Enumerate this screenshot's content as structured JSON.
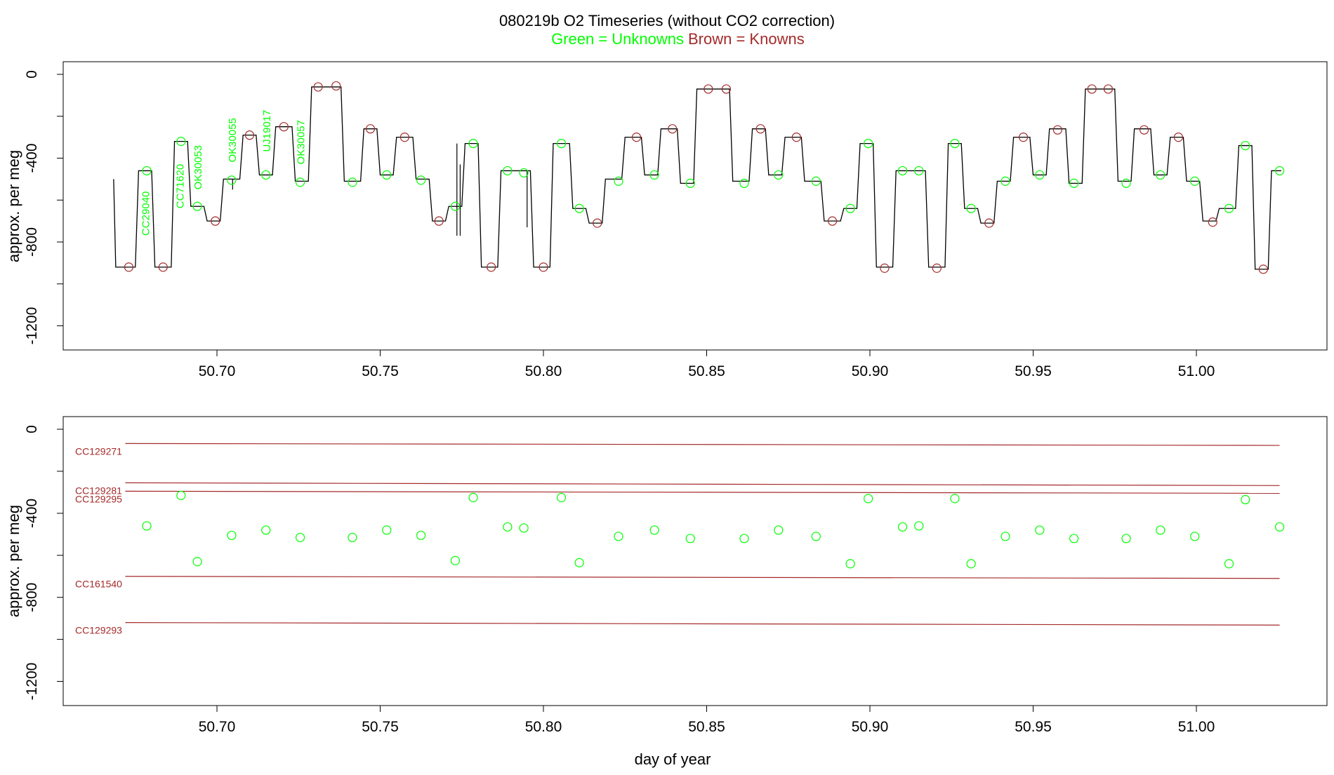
{
  "header": {
    "title": "080219b   O2 Timeseries (without CO2 correction)",
    "legend_green": "Green = Unknowns",
    "legend_brown": "Brown = Knowns"
  },
  "colors": {
    "unknowns": "#00ff00",
    "knowns": "#a52a2a",
    "trace": "#000000"
  },
  "chart_data": [
    {
      "type": "line",
      "panel": "top",
      "xlabel": "",
      "ylabel": "approx. per meg",
      "xlim": [
        50.655,
        51.04
      ],
      "ylim": [
        -1250,
        55
      ],
      "xticks": [
        "50.70",
        "50.75",
        "50.80",
        "50.85",
        "50.90",
        "50.95",
        "51.00"
      ],
      "yticks": [
        "0",
        "-400",
        "-800",
        "-1200"
      ],
      "segments": [
        {
          "x0": 50.669,
          "x1": 50.675,
          "y": -920
        },
        {
          "x0": 50.676,
          "x1": 50.68,
          "y": -460
        },
        {
          "x0": 50.681,
          "x1": 50.686,
          "y": -920
        },
        {
          "x0": 50.687,
          "x1": 50.691,
          "y": -320
        },
        {
          "x0": 50.692,
          "x1": 50.696,
          "y": -630
        },
        {
          "x0": 50.697,
          "x1": 50.701,
          "y": -700
        },
        {
          "x0": 50.702,
          "x1": 50.707,
          "y": -500
        },
        {
          "x0": 50.708,
          "x1": 50.712,
          "y": -290
        },
        {
          "x0": 50.713,
          "x1": 50.717,
          "y": -480
        },
        {
          "x0": 50.718,
          "x1": 50.723,
          "y": -250
        },
        {
          "x0": 50.724,
          "x1": 50.728,
          "y": -510
        },
        {
          "x0": 50.729,
          "x1": 50.738,
          "y": -60
        },
        {
          "x0": 50.739,
          "x1": 50.744,
          "y": -510
        },
        {
          "x0": 50.745,
          "x1": 50.749,
          "y": -260
        },
        {
          "x0": 50.75,
          "x1": 50.754,
          "y": -480
        },
        {
          "x0": 50.755,
          "x1": 50.76,
          "y": -300
        },
        {
          "x0": 50.761,
          "x1": 50.765,
          "y": -500
        },
        {
          "x0": 50.766,
          "x1": 50.77,
          "y": -700
        },
        {
          "x0": 50.771,
          "x1": 50.775,
          "y": -630
        },
        {
          "x0": 50.776,
          "x1": 50.78,
          "y": -330
        },
        {
          "x0": 50.781,
          "x1": 50.786,
          "y": -920
        },
        {
          "x0": 50.787,
          "x1": 50.796,
          "y": -460
        },
        {
          "x0": 50.797,
          "x1": 50.802,
          "y": -920
        },
        {
          "x0": 50.803,
          "x1": 50.808,
          "y": -330
        },
        {
          "x0": 50.809,
          "x1": 50.813,
          "y": -640
        },
        {
          "x0": 50.814,
          "x1": 50.818,
          "y": -710
        },
        {
          "x0": 50.819,
          "x1": 50.824,
          "y": -500
        },
        {
          "x0": 50.825,
          "x1": 50.83,
          "y": -300
        },
        {
          "x0": 50.831,
          "x1": 50.835,
          "y": -480
        },
        {
          "x0": 50.836,
          "x1": 50.841,
          "y": -260
        },
        {
          "x0": 50.842,
          "x1": 50.846,
          "y": -520
        },
        {
          "x0": 50.847,
          "x1": 50.857,
          "y": -70
        },
        {
          "x0": 50.858,
          "x1": 50.863,
          "y": -510
        },
        {
          "x0": 50.864,
          "x1": 50.868,
          "y": -260
        },
        {
          "x0": 50.869,
          "x1": 50.873,
          "y": -480
        },
        {
          "x0": 50.874,
          "x1": 50.879,
          "y": -300
        },
        {
          "x0": 50.88,
          "x1": 50.885,
          "y": -510
        },
        {
          "x0": 50.886,
          "x1": 50.891,
          "y": -700
        },
        {
          "x0": 50.892,
          "x1": 50.896,
          "y": -640
        },
        {
          "x0": 50.897,
          "x1": 50.901,
          "y": -330
        },
        {
          "x0": 50.902,
          "x1": 50.907,
          "y": -920
        },
        {
          "x0": 50.908,
          "x1": 50.917,
          "y": -460
        },
        {
          "x0": 50.918,
          "x1": 50.923,
          "y": -920
        },
        {
          "x0": 50.924,
          "x1": 50.928,
          "y": -330
        },
        {
          "x0": 50.929,
          "x1": 50.933,
          "y": -640
        },
        {
          "x0": 50.934,
          "x1": 50.938,
          "y": -710
        },
        {
          "x0": 50.939,
          "x1": 50.943,
          "y": -510
        },
        {
          "x0": 50.944,
          "x1": 50.949,
          "y": -300
        },
        {
          "x0": 50.95,
          "x1": 50.954,
          "y": -480
        },
        {
          "x0": 50.955,
          "x1": 50.96,
          "y": -260
        },
        {
          "x0": 50.961,
          "x1": 50.965,
          "y": -520
        },
        {
          "x0": 50.966,
          "x1": 50.975,
          "y": -70
        },
        {
          "x0": 50.976,
          "x1": 50.98,
          "y": -510
        },
        {
          "x0": 50.981,
          "x1": 50.986,
          "y": -260
        },
        {
          "x0": 50.987,
          "x1": 50.991,
          "y": -480
        },
        {
          "x0": 50.992,
          "x1": 50.996,
          "y": -300
        },
        {
          "x0": 50.997,
          "x1": 51.001,
          "y": -510
        },
        {
          "x0": 51.002,
          "x1": 51.006,
          "y": -700
        },
        {
          "x0": 51.007,
          "x1": 51.012,
          "y": -640
        },
        {
          "x0": 51.013,
          "x1": 51.017,
          "y": -340
        },
        {
          "x0": 51.018,
          "x1": 51.022,
          "y": -930
        },
        {
          "x0": 51.023,
          "x1": 51.026,
          "y": -460
        }
      ],
      "spikes": [
        {
          "x": 50.7048,
          "y0": -500,
          "y1": -550
        },
        {
          "x": 50.7735,
          "y0": -330,
          "y1": -770
        },
        {
          "x": 50.7745,
          "y0": -430,
          "y1": -770
        },
        {
          "x": 50.795,
          "y0": -460,
          "y1": -730
        }
      ],
      "unknown_points": [
        {
          "x": 50.6785,
          "y": -460
        },
        {
          "x": 50.689,
          "y": -320
        },
        {
          "x": 50.694,
          "y": -630
        },
        {
          "x": 50.7045,
          "y": -505
        },
        {
          "x": 50.715,
          "y": -480
        },
        {
          "x": 50.7255,
          "y": -515
        },
        {
          "x": 50.7415,
          "y": -515
        },
        {
          "x": 50.752,
          "y": -480
        },
        {
          "x": 50.7625,
          "y": -505
        },
        {
          "x": 50.773,
          "y": -630
        },
        {
          "x": 50.7785,
          "y": -330
        },
        {
          "x": 50.789,
          "y": -460
        },
        {
          "x": 50.794,
          "y": -470
        },
        {
          "x": 50.8055,
          "y": -330
        },
        {
          "x": 50.811,
          "y": -640
        },
        {
          "x": 50.823,
          "y": -510
        },
        {
          "x": 50.834,
          "y": -480
        },
        {
          "x": 50.845,
          "y": -520
        },
        {
          "x": 50.8615,
          "y": -520
        },
        {
          "x": 50.872,
          "y": -480
        },
        {
          "x": 50.8835,
          "y": -510
        },
        {
          "x": 50.894,
          "y": -640
        },
        {
          "x": 50.8995,
          "y": -330
        },
        {
          "x": 50.91,
          "y": -460
        },
        {
          "x": 50.915,
          "y": -460
        },
        {
          "x": 50.926,
          "y": -330
        },
        {
          "x": 50.931,
          "y": -640
        },
        {
          "x": 50.9415,
          "y": -510
        },
        {
          "x": 50.952,
          "y": -480
        },
        {
          "x": 50.9625,
          "y": -520
        },
        {
          "x": 50.9785,
          "y": -520
        },
        {
          "x": 50.989,
          "y": -480
        },
        {
          "x": 50.9995,
          "y": -510
        },
        {
          "x": 51.01,
          "y": -640
        },
        {
          "x": 51.015,
          "y": -340
        },
        {
          "x": 51.0255,
          "y": -460
        }
      ],
      "known_points": [
        {
          "x": 50.673,
          "y": -920
        },
        {
          "x": 50.6835,
          "y": -920
        },
        {
          "x": 50.6995,
          "y": -700
        },
        {
          "x": 50.71,
          "y": -290
        },
        {
          "x": 50.7205,
          "y": -250
        },
        {
          "x": 50.731,
          "y": -60
        },
        {
          "x": 50.7365,
          "y": -55
        },
        {
          "x": 50.747,
          "y": -260
        },
        {
          "x": 50.7575,
          "y": -300
        },
        {
          "x": 50.768,
          "y": -700
        },
        {
          "x": 50.784,
          "y": -920
        },
        {
          "x": 50.8,
          "y": -920
        },
        {
          "x": 50.8165,
          "y": -710
        },
        {
          "x": 50.8285,
          "y": -300
        },
        {
          "x": 50.8395,
          "y": -260
        },
        {
          "x": 50.8505,
          "y": -70
        },
        {
          "x": 50.856,
          "y": -70
        },
        {
          "x": 50.8665,
          "y": -260
        },
        {
          "x": 50.8775,
          "y": -300
        },
        {
          "x": 50.8885,
          "y": -700
        },
        {
          "x": 50.9045,
          "y": -925
        },
        {
          "x": 50.9205,
          "y": -925
        },
        {
          "x": 50.9365,
          "y": -710
        },
        {
          "x": 50.947,
          "y": -300
        },
        {
          "x": 50.9575,
          "y": -265
        },
        {
          "x": 50.968,
          "y": -70
        },
        {
          "x": 50.973,
          "y": -70
        },
        {
          "x": 50.984,
          "y": -265
        },
        {
          "x": 50.9945,
          "y": -300
        },
        {
          "x": 51.005,
          "y": -705
        },
        {
          "x": 51.0205,
          "y": -930
        }
      ],
      "annotations": [
        {
          "text": "CC29040",
          "x": 50.678,
          "y": -770
        },
        {
          "text": "CC71620",
          "x": 50.6885,
          "y": -640
        },
        {
          "text": "OK30053",
          "x": 50.694,
          "y": -550
        },
        {
          "text": "OK30055",
          "x": 50.7045,
          "y": -420
        },
        {
          "text": "UJ19017",
          "x": 50.715,
          "y": -370
        },
        {
          "text": "OK30057",
          "x": 50.7255,
          "y": -430
        }
      ]
    },
    {
      "type": "scatter",
      "panel": "bottom",
      "xlabel": "day of year",
      "ylabel": "approx. per meg",
      "xlim": [
        50.655,
        51.04
      ],
      "ylim": [
        -1250,
        55
      ],
      "xticks": [
        "50.70",
        "50.75",
        "50.80",
        "50.85",
        "50.90",
        "50.95",
        "51.00"
      ],
      "yticks": [
        "0",
        "-400",
        "-800",
        "-1200"
      ],
      "reference_lines": [
        {
          "name": "CC129271",
          "x0": 50.673,
          "x1": 51.0255,
          "y0": -68,
          "y1": -77
        },
        {
          "name": "CC129281",
          "x0": 50.673,
          "x1": 51.0255,
          "y0": -255,
          "y1": -268
        },
        {
          "name": "CC129295",
          "x0": 50.673,
          "x1": 51.0255,
          "y0": -295,
          "y1": -305
        },
        {
          "name": "CC161540",
          "x0": 50.673,
          "x1": 51.0255,
          "y0": -700,
          "y1": -710
        },
        {
          "name": "CC129293",
          "x0": 50.673,
          "x1": 51.0255,
          "y0": -920,
          "y1": -932
        }
      ],
      "unknown_points": [
        {
          "x": 50.6785,
          "y": -460
        },
        {
          "x": 50.689,
          "y": -315
        },
        {
          "x": 50.694,
          "y": -630
        },
        {
          "x": 50.7045,
          "y": -505
        },
        {
          "x": 50.715,
          "y": -480
        },
        {
          "x": 50.7255,
          "y": -515
        },
        {
          "x": 50.7415,
          "y": -515
        },
        {
          "x": 50.752,
          "y": -480
        },
        {
          "x": 50.7625,
          "y": -505
        },
        {
          "x": 50.773,
          "y": -625
        },
        {
          "x": 50.7785,
          "y": -325
        },
        {
          "x": 50.789,
          "y": -465
        },
        {
          "x": 50.794,
          "y": -470
        },
        {
          "x": 50.8055,
          "y": -325
        },
        {
          "x": 50.811,
          "y": -635
        },
        {
          "x": 50.823,
          "y": -510
        },
        {
          "x": 50.834,
          "y": -480
        },
        {
          "x": 50.845,
          "y": -520
        },
        {
          "x": 50.8615,
          "y": -520
        },
        {
          "x": 50.872,
          "y": -480
        },
        {
          "x": 50.8835,
          "y": -510
        },
        {
          "x": 50.894,
          "y": -640
        },
        {
          "x": 50.8995,
          "y": -330
        },
        {
          "x": 50.91,
          "y": -465
        },
        {
          "x": 50.915,
          "y": -460
        },
        {
          "x": 50.926,
          "y": -330
        },
        {
          "x": 50.931,
          "y": -640
        },
        {
          "x": 50.9415,
          "y": -510
        },
        {
          "x": 50.952,
          "y": -480
        },
        {
          "x": 50.9625,
          "y": -520
        },
        {
          "x": 50.9785,
          "y": -520
        },
        {
          "x": 50.989,
          "y": -480
        },
        {
          "x": 50.9995,
          "y": -510
        },
        {
          "x": 51.01,
          "y": -640
        },
        {
          "x": 51.015,
          "y": -335
        },
        {
          "x": 51.0255,
          "y": -465
        }
      ]
    }
  ]
}
